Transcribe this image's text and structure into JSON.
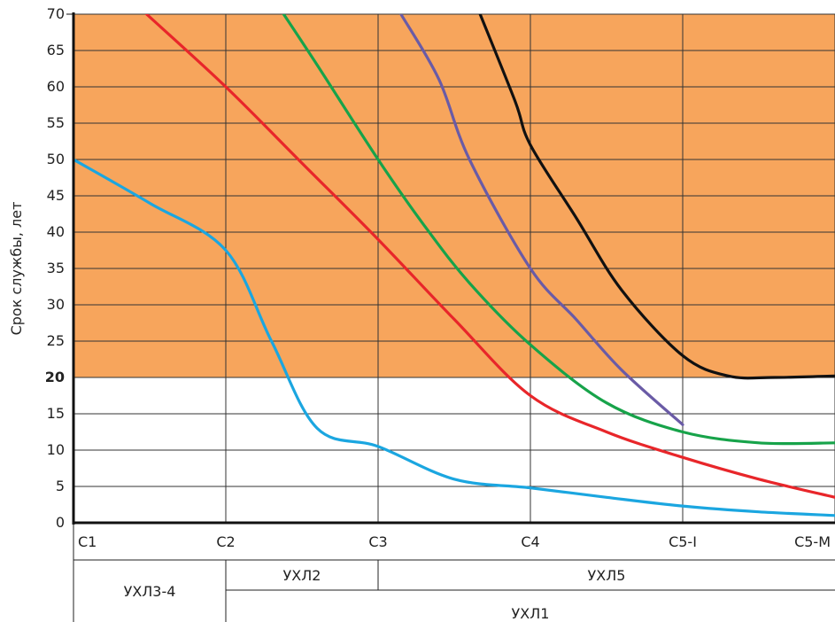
{
  "chart_data": {
    "type": "line",
    "title": "",
    "xlabel": "",
    "ylabel": "Срок службы, лет",
    "categories": [
      "C1",
      "C2",
      "C3",
      "C4",
      "C5-I",
      "C5-M"
    ],
    "ylim": [
      0,
      70
    ],
    "yticks": [
      0,
      5,
      10,
      15,
      20,
      25,
      30,
      35,
      40,
      45,
      50,
      55,
      60,
      65,
      70
    ],
    "highlight_tick": 20,
    "highlight_band": {
      "from": 20,
      "to": 70,
      "color": "#F7A55C"
    },
    "grid": true,
    "series": [
      {
        "color": "#1BA6E0",
        "x": [
          0,
          0.5,
          1,
          1.3,
          1.6,
          2,
          2.5,
          3,
          3.5,
          4,
          4.5,
          5
        ],
        "y": [
          50,
          44,
          37.5,
          25,
          13,
          10.5,
          6,
          4.8,
          3.5,
          2.3,
          1.5,
          1
        ]
      },
      {
        "color": "#E8262A",
        "x": [
          0.48,
          1,
          1.5,
          2,
          2.5,
          3,
          3.5,
          4,
          4.5,
          5
        ],
        "y": [
          70,
          60,
          49.5,
          39,
          28,
          17.5,
          12.5,
          9,
          6,
          3.5
        ]
      },
      {
        "color": "#17A34A",
        "x": [
          1.38,
          1.6,
          2,
          2.3,
          2.6,
          3,
          3.5,
          4,
          4.5,
          5
        ],
        "y": [
          70,
          63,
          50,
          41,
          33,
          24.5,
          16.5,
          12.5,
          11,
          11
        ]
      },
      {
        "color": "#6A5BA6",
        "x": [
          2.15,
          2.4,
          2.6,
          3,
          3.3,
          3.6,
          4
        ],
        "y": [
          70,
          61,
          50,
          35,
          28,
          21,
          13.5
        ]
      },
      {
        "color": "#111111",
        "x": [
          2.67,
          2.9,
          3,
          3.3,
          3.6,
          4,
          4.3,
          4.6,
          5
        ],
        "y": [
          70,
          58,
          52,
          42,
          32,
          23,
          20.2,
          20,
          20.2
        ]
      }
    ],
    "climate_rows": [
      [
        {
          "label": "УХЛ3-4",
          "from": 0,
          "to": 1
        },
        {
          "label": "УХЛ2",
          "from": 1,
          "to": 2
        },
        {
          "label": "УХЛ5",
          "from": 2,
          "to": 5
        }
      ],
      [
        {
          "label": "УХЛ1",
          "from": 1,
          "to": 5
        }
      ]
    ]
  }
}
